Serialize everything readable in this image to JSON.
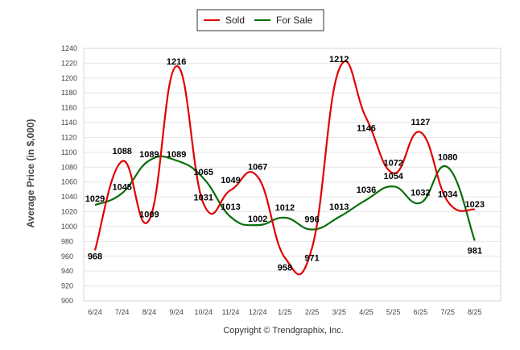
{
  "chart_data": {
    "type": "line",
    "categories": [
      "6/24",
      "7/24",
      "8/24",
      "9/24",
      "10/24",
      "11/24",
      "12/24",
      "1/25",
      "2/25",
      "3/25",
      "4/25",
      "5/25",
      "6/25",
      "7/25",
      "8/25"
    ],
    "series": [
      {
        "name": "Sold",
        "color": "#e00000",
        "values": [
          968,
          1088,
          1009,
          1216,
          1031,
          1049,
          1067,
          958,
          971,
          1212,
          1146,
          1072,
          1127,
          1034,
          1023
        ]
      },
      {
        "name": "For Sale",
        "color": "#0a6e0a",
        "values": [
          1029,
          1045,
          1089,
          1089,
          1065,
          1013,
          1002,
          1012,
          996,
          1013,
          1036,
          1054,
          1032,
          1080,
          981
        ]
      }
    ],
    "ylabel": "Average Price (in $,000)",
    "ylim": [
      900,
      1240
    ],
    "yticks": [
      900,
      920,
      940,
      960,
      980,
      1000,
      1020,
      1040,
      1060,
      1080,
      1100,
      1120,
      1140,
      1160,
      1180,
      1200,
      1220,
      1240
    ],
    "grid": true,
    "legend_position": "top-center"
  },
  "footer": {
    "credit": "Copyright © Trendgraphix, Inc."
  }
}
